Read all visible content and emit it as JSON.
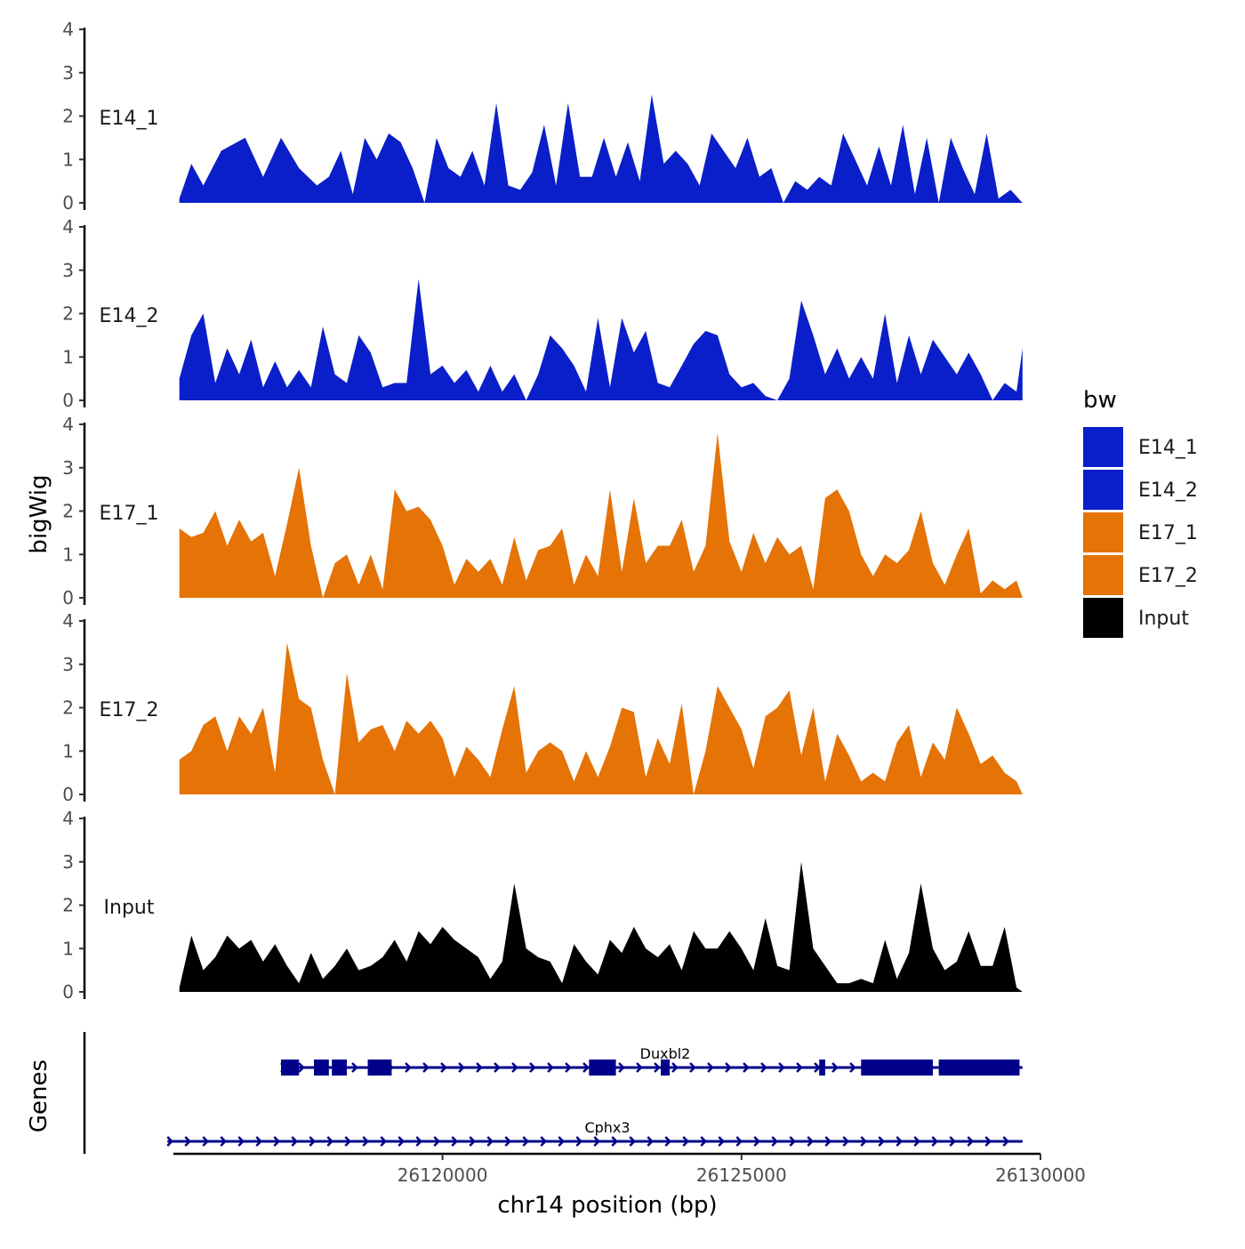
{
  "chart_data": {
    "type": "area",
    "xlabel": "chr14 position (bp)",
    "ylabel": "bigWig",
    "genes_label": "Genes",
    "xlim": [
      26115500,
      26130000
    ],
    "ylim": [
      0,
      4
    ],
    "x_ticks": [
      {
        "value": 26120000,
        "label": "26120000"
      },
      {
        "value": 26125000,
        "label": "26125000"
      },
      {
        "value": 26130000,
        "label": "26130000"
      }
    ],
    "y_ticks": [
      0,
      1,
      2,
      3,
      4
    ],
    "legend": {
      "title": "bw",
      "entries": [
        {
          "name": "E14_1",
          "color": "#0A1FC9"
        },
        {
          "name": "E14_2",
          "color": "#0A1FC9"
        },
        {
          "name": "E17_1",
          "color": "#E57306"
        },
        {
          "name": "E17_2",
          "color": "#E57306"
        },
        {
          "name": "Input",
          "color": "#000000"
        }
      ]
    },
    "series": [
      {
        "name": "E14_1",
        "color": "#0A1FC9",
        "x": [
          26115600,
          26115800,
          26116000,
          26116300,
          26116700,
          26117000,
          26117300,
          26117600,
          26117900,
          26118100,
          26118300,
          26118500,
          26118700,
          26118900,
          26119100,
          26119300,
          26119500,
          26119700,
          26119900,
          26120100,
          26120300,
          26120500,
          26120700,
          26120900,
          26121100,
          26121300,
          26121500,
          26121700,
          26121900,
          26122100,
          26122300,
          26122500,
          26122700,
          26122900,
          26123100,
          26123300,
          26123500,
          26123700,
          26123900,
          26124100,
          26124300,
          26124500,
          26124700,
          26124900,
          26125100,
          26125300,
          26125500,
          26125700,
          26125900,
          26126100,
          26126300,
          26126500,
          26126700,
          26126900,
          26127100,
          26127300,
          26127500,
          26127700,
          26127900,
          26128100,
          26128300,
          26128500,
          26128700,
          26128900,
          26129100,
          26129300,
          26129500,
          26129700
        ],
        "values": [
          0.1,
          0.9,
          0.4,
          1.2,
          1.5,
          0.6,
          1.5,
          0.8,
          0.4,
          0.6,
          1.2,
          0.2,
          1.5,
          1.0,
          1.6,
          1.4,
          0.8,
          0.0,
          1.5,
          0.8,
          0.6,
          1.2,
          0.4,
          2.3,
          0.4,
          0.3,
          0.7,
          1.8,
          0.4,
          2.3,
          0.6,
          0.6,
          1.5,
          0.6,
          1.4,
          0.5,
          2.5,
          0.9,
          1.2,
          0.9,
          0.4,
          1.6,
          1.2,
          0.8,
          1.5,
          0.6,
          0.8,
          0.0,
          0.5,
          0.3,
          0.6,
          0.4,
          1.6,
          1.0,
          0.4,
          1.3,
          0.4,
          1.8,
          0.2,
          1.5,
          0.0,
          1.5,
          0.8,
          0.2,
          1.6,
          0.1,
          0.3,
          0.0
        ]
      },
      {
        "name": "E14_2",
        "color": "#0A1FC9",
        "x": [
          26115600,
          26115800,
          26116000,
          26116200,
          26116400,
          26116600,
          26116800,
          26117000,
          26117200,
          26117400,
          26117600,
          26117800,
          26118000,
          26118200,
          26118400,
          26118600,
          26118800,
          26119000,
          26119200,
          26119400,
          26119600,
          26119800,
          26120000,
          26120200,
          26120400,
          26120600,
          26120800,
          26121000,
          26121200,
          26121400,
          26121600,
          26121800,
          26122000,
          26122200,
          26122400,
          26122600,
          26122800,
          26123000,
          26123200,
          26123400,
          26123600,
          26123800,
          26124000,
          26124200,
          26124400,
          26124600,
          26124800,
          26125000,
          26125200,
          26125400,
          26125600,
          26125800,
          26126000,
          26126200,
          26126400,
          26126600,
          26126800,
          26127000,
          26127200,
          26127400,
          26127600,
          26127800,
          26128000,
          26128200,
          26128400,
          26128600,
          26128800,
          26129000,
          26129200,
          26129400,
          26129600,
          26129700
        ],
        "values": [
          0.5,
          1.5,
          2.0,
          0.4,
          1.2,
          0.6,
          1.4,
          0.3,
          0.9,
          0.3,
          0.7,
          0.3,
          1.7,
          0.6,
          0.4,
          1.5,
          1.1,
          0.3,
          0.4,
          0.4,
          2.8,
          0.6,
          0.8,
          0.4,
          0.7,
          0.2,
          0.8,
          0.2,
          0.6,
          0.0,
          0.6,
          1.5,
          1.2,
          0.8,
          0.2,
          1.9,
          0.3,
          1.9,
          1.1,
          1.6,
          0.4,
          0.3,
          0.8,
          1.3,
          1.6,
          1.5,
          0.6,
          0.3,
          0.4,
          0.1,
          0.0,
          0.5,
          2.3,
          1.5,
          0.6,
          1.2,
          0.5,
          1.0,
          0.5,
          2.0,
          0.4,
          1.5,
          0.6,
          1.4,
          1.0,
          0.6,
          1.1,
          0.6,
          0.0,
          0.4,
          0.2,
          1.2
        ]
      },
      {
        "name": "E17_1",
        "color": "#E57306",
        "x": [
          26115600,
          26115800,
          26116000,
          26116200,
          26116400,
          26116600,
          26116800,
          26117000,
          26117200,
          26117400,
          26117600,
          26117800,
          26118000,
          26118200,
          26118400,
          26118600,
          26118800,
          26119000,
          26119200,
          26119400,
          26119600,
          26119800,
          26120000,
          26120200,
          26120400,
          26120600,
          26120800,
          26121000,
          26121200,
          26121400,
          26121600,
          26121800,
          26122000,
          26122200,
          26122400,
          26122600,
          26122800,
          26123000,
          26123200,
          26123400,
          26123600,
          26123800,
          26124000,
          26124200,
          26124400,
          26124600,
          26124800,
          26125000,
          26125200,
          26125400,
          26125600,
          26125800,
          26126000,
          26126200,
          26126400,
          26126600,
          26126800,
          26127000,
          26127200,
          26127400,
          26127600,
          26127800,
          26128000,
          26128200,
          26128400,
          26128600,
          26128800,
          26129000,
          26129200,
          26129400,
          26129600,
          26129700
        ],
        "values": [
          1.6,
          1.4,
          1.5,
          2.0,
          1.2,
          1.8,
          1.3,
          1.5,
          0.5,
          1.7,
          3.0,
          1.2,
          0.0,
          0.8,
          1.0,
          0.3,
          1.0,
          0.2,
          2.5,
          2.0,
          2.1,
          1.8,
          1.2,
          0.3,
          0.9,
          0.6,
          0.9,
          0.3,
          1.4,
          0.4,
          1.1,
          1.2,
          1.6,
          0.3,
          1.0,
          0.5,
          2.5,
          0.6,
          2.3,
          0.8,
          1.2,
          1.2,
          1.8,
          0.6,
          1.2,
          3.8,
          1.3,
          0.6,
          1.5,
          0.8,
          1.4,
          1.0,
          1.2,
          0.2,
          2.3,
          2.5,
          2.0,
          1.0,
          0.5,
          1.0,
          0.8,
          1.1,
          2.0,
          0.8,
          0.3,
          1.0,
          1.6,
          0.1,
          0.4,
          0.2,
          0.4,
          0.0
        ]
      },
      {
        "name": "E17_2",
        "color": "#E57306",
        "x": [
          26115600,
          26115800,
          26116000,
          26116200,
          26116400,
          26116600,
          26116800,
          26117000,
          26117200,
          26117400,
          26117600,
          26117800,
          26118000,
          26118200,
          26118400,
          26118600,
          26118800,
          26119000,
          26119200,
          26119400,
          26119600,
          26119800,
          26120000,
          26120200,
          26120400,
          26120600,
          26120800,
          26121000,
          26121200,
          26121400,
          26121600,
          26121800,
          26122000,
          26122200,
          26122400,
          26122600,
          26122800,
          26123000,
          26123200,
          26123400,
          26123600,
          26123800,
          26124000,
          26124200,
          26124400,
          26124600,
          26124800,
          26125000,
          26125200,
          26125400,
          26125600,
          26125800,
          26126000,
          26126200,
          26126400,
          26126600,
          26126800,
          26127000,
          26127200,
          26127400,
          26127600,
          26127800,
          26128000,
          26128200,
          26128400,
          26128600,
          26128800,
          26129000,
          26129200,
          26129400,
          26129600,
          26129700
        ],
        "values": [
          0.8,
          1.0,
          1.6,
          1.8,
          1.0,
          1.8,
          1.4,
          2.0,
          0.5,
          3.5,
          2.2,
          2.0,
          0.8,
          0.0,
          2.8,
          1.2,
          1.5,
          1.6,
          1.0,
          1.7,
          1.4,
          1.7,
          1.3,
          0.4,
          1.1,
          0.8,
          0.4,
          1.5,
          2.5,
          0.5,
          1.0,
          1.2,
          1.0,
          0.3,
          1.0,
          0.4,
          1.1,
          2.0,
          1.9,
          0.4,
          1.3,
          0.7,
          2.1,
          0.0,
          1.0,
          2.5,
          2.0,
          1.5,
          0.6,
          1.8,
          2.0,
          2.4,
          0.9,
          2.0,
          0.3,
          1.4,
          0.9,
          0.3,
          0.5,
          0.3,
          1.2,
          1.6,
          0.4,
          1.2,
          0.8,
          2.0,
          1.4,
          0.7,
          0.9,
          0.5,
          0.3,
          0.0
        ]
      },
      {
        "name": "Input",
        "color": "#000000",
        "x": [
          26115600,
          26115800,
          26116000,
          26116200,
          26116400,
          26116600,
          26116800,
          26117000,
          26117200,
          26117400,
          26117600,
          26117800,
          26118000,
          26118200,
          26118400,
          26118600,
          26118800,
          26119000,
          26119200,
          26119400,
          26119600,
          26119800,
          26120000,
          26120200,
          26120400,
          26120600,
          26120800,
          26121000,
          26121200,
          26121400,
          26121600,
          26121800,
          26122000,
          26122200,
          26122400,
          26122600,
          26122800,
          26123000,
          26123200,
          26123400,
          26123600,
          26123800,
          26124000,
          26124200,
          26124400,
          26124600,
          26124800,
          26125000,
          26125200,
          26125400,
          26125600,
          26125800,
          26126000,
          26126200,
          26126400,
          26126600,
          26126800,
          26127000,
          26127200,
          26127400,
          26127600,
          26127800,
          26128000,
          26128200,
          26128400,
          26128600,
          26128800,
          26129000,
          26129200,
          26129400,
          26129600,
          26129700
        ],
        "values": [
          0.1,
          1.3,
          0.5,
          0.8,
          1.3,
          1.0,
          1.2,
          0.7,
          1.1,
          0.6,
          0.2,
          0.9,
          0.3,
          0.6,
          1.0,
          0.5,
          0.6,
          0.8,
          1.2,
          0.7,
          1.4,
          1.1,
          1.5,
          1.2,
          1.0,
          0.8,
          0.3,
          0.7,
          2.5,
          1.0,
          0.8,
          0.7,
          0.2,
          1.1,
          0.7,
          0.4,
          1.2,
          0.9,
          1.5,
          1.0,
          0.8,
          1.1,
          0.5,
          1.4,
          1.0,
          1.0,
          1.4,
          1.0,
          0.5,
          1.7,
          0.6,
          0.5,
          3.0,
          1.0,
          0.6,
          0.2,
          0.2,
          0.3,
          0.2,
          1.2,
          0.3,
          0.9,
          2.5,
          1.0,
          0.5,
          0.7,
          1.4,
          0.6,
          0.6,
          1.5,
          0.1,
          0.0
        ]
      }
    ],
    "genes": [
      {
        "name": "Duxbl2",
        "start": 26117300,
        "end": 26129700,
        "exons": [
          [
            26117300,
            26117600
          ],
          [
            26117850,
            26118100
          ],
          [
            26118150,
            26118400
          ],
          [
            26118750,
            26119150
          ],
          [
            26122450,
            26122900
          ],
          [
            26123650,
            26123800
          ],
          [
            26126300,
            26126400
          ],
          [
            26127000,
            26128200
          ],
          [
            26128300,
            26129650
          ]
        ]
      },
      {
        "name": "Cphx3",
        "start": 26115400,
        "end": 26129700,
        "exons": []
      }
    ]
  }
}
